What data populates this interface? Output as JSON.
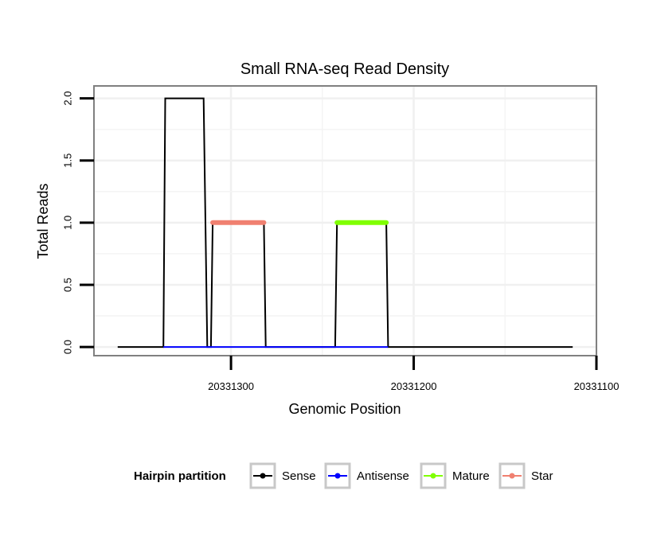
{
  "chart_data": {
    "type": "line",
    "title": "Small RNA-seq Read Density",
    "xlabel": "Genomic Position",
    "ylabel": "Total Reads",
    "x_reversed": true,
    "xlim": [
      20331375,
      20331100
    ],
    "ylim": [
      -0.07,
      2.1
    ],
    "x_ticks": [
      20331300,
      20331200,
      20331100
    ],
    "x_tick_labels": [
      "20331300",
      "20331200",
      "20331100"
    ],
    "y_ticks": [
      0,
      0.5,
      1,
      1.5,
      2
    ],
    "y_tick_labels": [
      "0.0",
      "0.5",
      "1.0",
      "1.5",
      "2.0"
    ],
    "grid": true,
    "legend_title": "Hairpin partition",
    "legend_position": "bottom",
    "series": [
      {
        "name": "Sense",
        "color": "#000000",
        "linewidth": "thin",
        "points": [
          [
            20331362,
            0
          ],
          [
            20331337,
            0
          ],
          [
            20331336,
            2
          ],
          [
            20331315,
            2
          ],
          [
            20331313,
            0
          ],
          [
            20331311,
            0
          ],
          [
            20331310,
            1
          ],
          [
            20331282,
            1
          ],
          [
            20331281,
            0
          ],
          [
            20331243,
            0
          ],
          [
            20331242,
            1
          ],
          [
            20331215,
            1
          ],
          [
            20331214,
            0
          ],
          [
            20331113,
            0
          ]
        ]
      },
      {
        "name": "Antisense",
        "color": "#0000ff",
        "linewidth": "thin",
        "points": [
          [
            20331337,
            0
          ],
          [
            20331281,
            0
          ],
          [
            20331243,
            0
          ],
          [
            20331214,
            0
          ]
        ]
      },
      {
        "name": "Mature",
        "color": "#80ff00",
        "linewidth": "thick",
        "points": [
          [
            20331242,
            1
          ],
          [
            20331215,
            1
          ]
        ]
      },
      {
        "name": "Star",
        "color": "#f08070",
        "linewidth": "thick",
        "points": [
          [
            20331310,
            1
          ],
          [
            20331282,
            1
          ]
        ]
      }
    ]
  }
}
